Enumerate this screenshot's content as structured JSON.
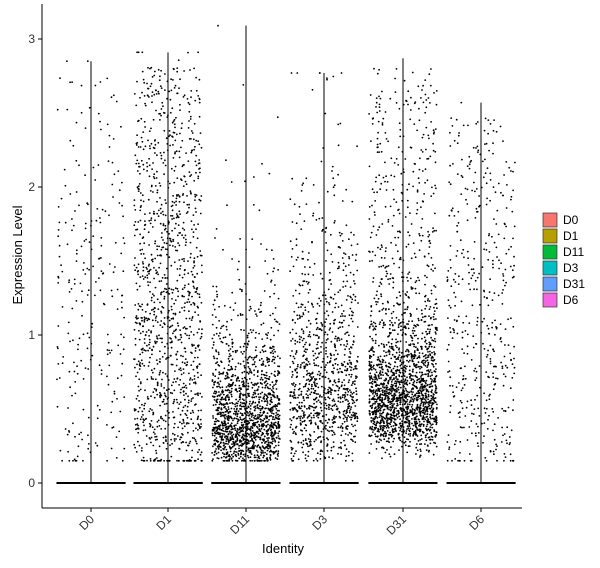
{
  "chart_data": {
    "type": "scatter",
    "subtype": "violin-jitter",
    "title": "",
    "xlabel": "Identity",
    "ylabel": "Expression Level",
    "categories": [
      "D0",
      "D1",
      "D11",
      "D3",
      "D31",
      "D6"
    ],
    "ylim": [
      -0.15,
      3.2
    ],
    "yticks": [
      0,
      1,
      2,
      3
    ],
    "ytick_labels": [
      "0",
      "1",
      "2",
      "3"
    ],
    "grid": false,
    "legend_position": "right",
    "series": [
      {
        "name": "D0",
        "color": "#F8766D",
        "max": 2.85,
        "n_zero": 200,
        "n_points": 250,
        "median": 1.0,
        "spread": 0.85,
        "shape": "uniform"
      },
      {
        "name": "D1",
        "color": "#B79F00",
        "max": 2.91,
        "n_zero": 400,
        "n_points": 1200,
        "median": 0.95,
        "spread": 0.8,
        "shape": "uniform"
      },
      {
        "name": "D11",
        "color": "#00BA38",
        "max": 3.09,
        "n_zero": 450,
        "n_points": 1500,
        "median": 0.45,
        "spread": 0.3,
        "shape": "skewed"
      },
      {
        "name": "D3",
        "color": "#00BFC4",
        "max": 2.77,
        "n_zero": 400,
        "n_points": 1000,
        "median": 0.7,
        "spread": 0.6,
        "shape": "skewed"
      },
      {
        "name": "D31",
        "color": "#619CFF",
        "max": 2.87,
        "n_zero": 400,
        "n_points": 2000,
        "median": 0.6,
        "spread": 0.3,
        "shape": "dense"
      },
      {
        "name": "D6",
        "color": "#F564E3",
        "max": 2.57,
        "n_zero": 200,
        "n_points": 450,
        "median": 0.8,
        "spread": 0.7,
        "shape": "uniform"
      }
    ]
  }
}
